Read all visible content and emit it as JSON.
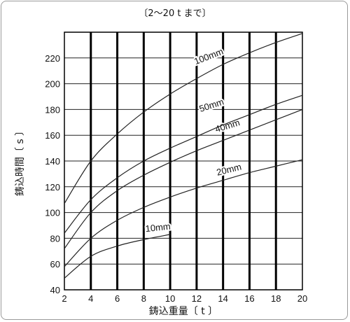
{
  "chart_data": {
    "type": "line",
    "title": "〔2〜20 t まで〕",
    "xlabel": "鋳込重量〔 t 〕",
    "ylabel": "鋳込時間〔 s 〕",
    "xlim": [
      2,
      20
    ],
    "ylim": [
      40,
      240
    ],
    "xticks": [
      2,
      4,
      6,
      8,
      10,
      12,
      14,
      16,
      18,
      20
    ],
    "yticks": [
      40,
      60,
      80,
      100,
      120,
      140,
      160,
      180,
      200,
      220
    ],
    "grid": true,
    "series": [
      {
        "name": "10mm",
        "x": [
          2,
          4,
          6,
          8,
          10
        ],
        "y": [
          49,
          66,
          74,
          79,
          83
        ]
      },
      {
        "name": "20mm",
        "x": [
          2,
          4,
          6,
          8,
          10,
          12,
          14,
          16,
          18,
          20
        ],
        "y": [
          58,
          80,
          94,
          104,
          112,
          119,
          125,
          131,
          136,
          141
        ]
      },
      {
        "name": "40mm",
        "x": [
          2,
          4,
          6,
          8,
          10,
          12,
          14,
          16,
          18,
          20
        ],
        "y": [
          72,
          100,
          117,
          129,
          139,
          148,
          156,
          164,
          172,
          180
        ]
      },
      {
        "name": "50mm",
        "x": [
          2,
          4,
          6,
          8,
          10,
          12,
          14,
          16,
          18,
          20
        ],
        "y": [
          84,
          110,
          127,
          140,
          150,
          159,
          168,
          176,
          184,
          191
        ]
      },
      {
        "name": "100mm",
        "x": [
          2,
          4,
          6,
          8,
          10,
          12,
          14,
          16,
          18,
          20
        ],
        "y": [
          107,
          140,
          161,
          178,
          192,
          204,
          215,
          224,
          232,
          239
        ]
      }
    ]
  }
}
